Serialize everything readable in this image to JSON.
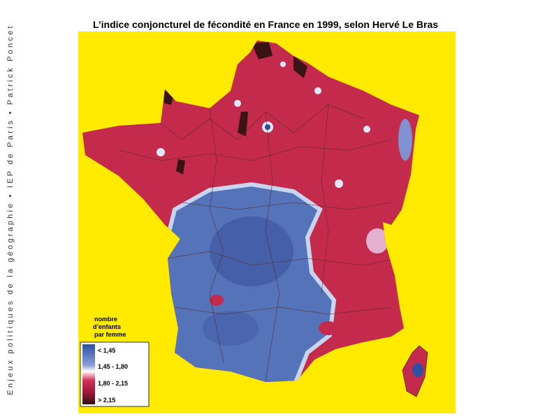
{
  "title": "L’indice conjoncturel de fécondité en France en 1999, selon Hervé Le Bras",
  "sidebar": "Enjeux politiques de la géographie • IEP de Paris • Patrick Poncet",
  "legend": {
    "title": [
      "nombre",
      "d’enfants",
      "par femme"
    ],
    "items": [
      "< 1,45",
      "1,45 - 1,80",
      "1,80 - 2,15",
      "> 2,15"
    ]
  }
}
